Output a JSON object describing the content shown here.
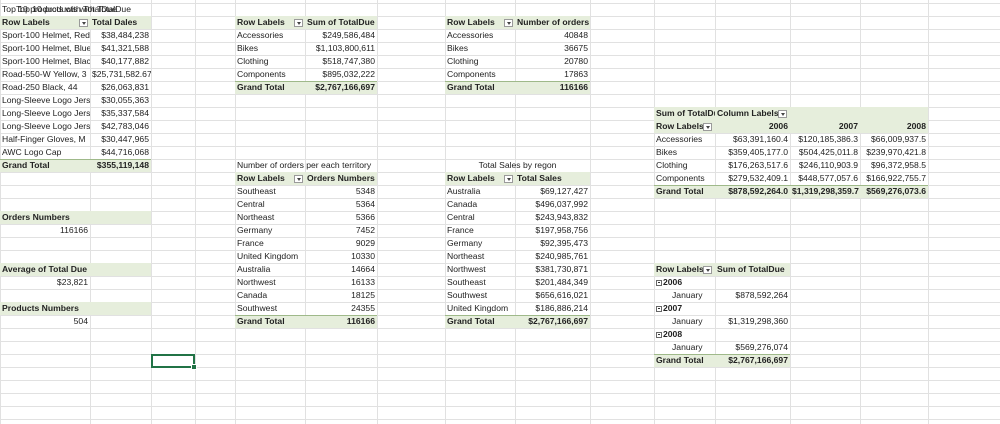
{
  "top10": {
    "title": "Top 10 products with TotalDue",
    "header": [
      "Row Labels",
      "Total Dales"
    ],
    "rows": [
      [
        "Sport-100 Helmet, Red",
        "$38,484,238"
      ],
      [
        "Sport-100 Helmet, Blue",
        "$41,321,588"
      ],
      [
        "Sport-100 Helmet, Blac",
        "$40,177,882"
      ],
      [
        "Road-550-W Yellow, 3",
        "$25,731,582.67"
      ],
      [
        "Road-250 Black, 44",
        "$26,063,831"
      ],
      [
        "Long-Sleeve Logo Jerse",
        "$30,055,363"
      ],
      [
        "Long-Sleeve Logo Jerse",
        "$35,337,584"
      ],
      [
        "Long-Sleeve Logo Jerse",
        "$42,783,046"
      ],
      [
        "Half-Finger Gloves, M",
        "$30,447,965"
      ],
      [
        "AWC Logo Cap",
        "$44,716,068"
      ]
    ],
    "total": [
      "Grand Total",
      "$355,119,148"
    ]
  },
  "category_sum": {
    "header": [
      "Row Labels",
      "Sum of TotalDue"
    ],
    "rows": [
      [
        "Accessories",
        "$249,586,484"
      ],
      [
        "Bikes",
        "$1,103,800,611"
      ],
      [
        "Clothing",
        "$518,747,380"
      ],
      [
        "Components",
        "$895,032,222"
      ]
    ],
    "total": [
      "Grand Total",
      "$2,767,166,697"
    ]
  },
  "category_orders": {
    "header": [
      "Row Labels",
      "Number of orders"
    ],
    "rows": [
      [
        "Accessories",
        "40848"
      ],
      [
        "Bikes",
        "36675"
      ],
      [
        "Clothing",
        "20780"
      ],
      [
        "Components",
        "17863"
      ]
    ],
    "total": [
      "Grand Total",
      "116166"
    ]
  },
  "territory_orders": {
    "title": "Number of orders per each territory",
    "header": [
      "Row Labels",
      "Orders Numbers"
    ],
    "rows": [
      [
        "Southeast",
        "5348"
      ],
      [
        "Central",
        "5364"
      ],
      [
        "Northeast",
        "5366"
      ],
      [
        "Germany",
        "7452"
      ],
      [
        "France",
        "9029"
      ],
      [
        "United Kingdom",
        "10330"
      ],
      [
        "Australia",
        "14664"
      ],
      [
        "Northwest",
        "16133"
      ],
      [
        "Canada",
        "18125"
      ],
      [
        "Southwest",
        "24355"
      ]
    ],
    "total": [
      "Grand Total",
      "116166"
    ]
  },
  "region_sales": {
    "title": "Total Sales by regon",
    "header": [
      "Row Labels",
      "Total Sales"
    ],
    "rows": [
      [
        "Australia",
        "$69,127,427"
      ],
      [
        "Canada",
        "$496,037,992"
      ],
      [
        "Central",
        "$243,943,832"
      ],
      [
        "France",
        "$197,958,756"
      ],
      [
        "Germany",
        "$92,395,473"
      ],
      [
        "Northeast",
        "$240,985,761"
      ],
      [
        "Northwest",
        "$381,730,871"
      ],
      [
        "Southeast",
        "$201,484,349"
      ],
      [
        "Southwest",
        "$656,616,021"
      ],
      [
        "United Kingdom",
        "$186,886,214"
      ]
    ],
    "total": [
      "Grand Total",
      "$2,767,166,697"
    ]
  },
  "year_pivot": {
    "header": [
      "Sum of TotalDue",
      "Column Labels"
    ],
    "row_header": "Row Labels",
    "years": [
      "2006",
      "2007",
      "2008"
    ],
    "rows": [
      [
        "Accessories",
        "$63,391,160.4",
        "$120,185,386.3",
        "$66,009,937.5"
      ],
      [
        "Bikes",
        "$359,405,177.0",
        "$504,425,011.8",
        "$239,970,421.8"
      ],
      [
        "Clothing",
        "$176,263,517.6",
        "$246,110,903.9",
        "$96,372,958.5"
      ],
      [
        "Components",
        "$279,532,409.1",
        "$448,577,057.6",
        "$166,922,755.7"
      ]
    ],
    "total": [
      "Grand Total",
      "$878,592,264.0",
      "$1,319,298,359.7",
      "$569,276,073.6"
    ]
  },
  "monthly": {
    "header": [
      "Row Labels",
      "Sum of TotalDue"
    ],
    "groups": [
      {
        "year": "2006",
        "month": "January",
        "value": "$878,592,264"
      },
      {
        "year": "2007",
        "month": "January",
        "value": "$1,319,298,360"
      },
      {
        "year": "2008",
        "month": "January",
        "value": "$569,276,074"
      }
    ],
    "total": [
      "Grand Total",
      "$2,767,166,697"
    ]
  },
  "kpis": [
    {
      "label": "Orders Numbers",
      "value": "116166"
    },
    {
      "label": "Average of Total Due",
      "value": "$23,821"
    },
    {
      "label": "Products Numbers",
      "value": "504"
    }
  ]
}
